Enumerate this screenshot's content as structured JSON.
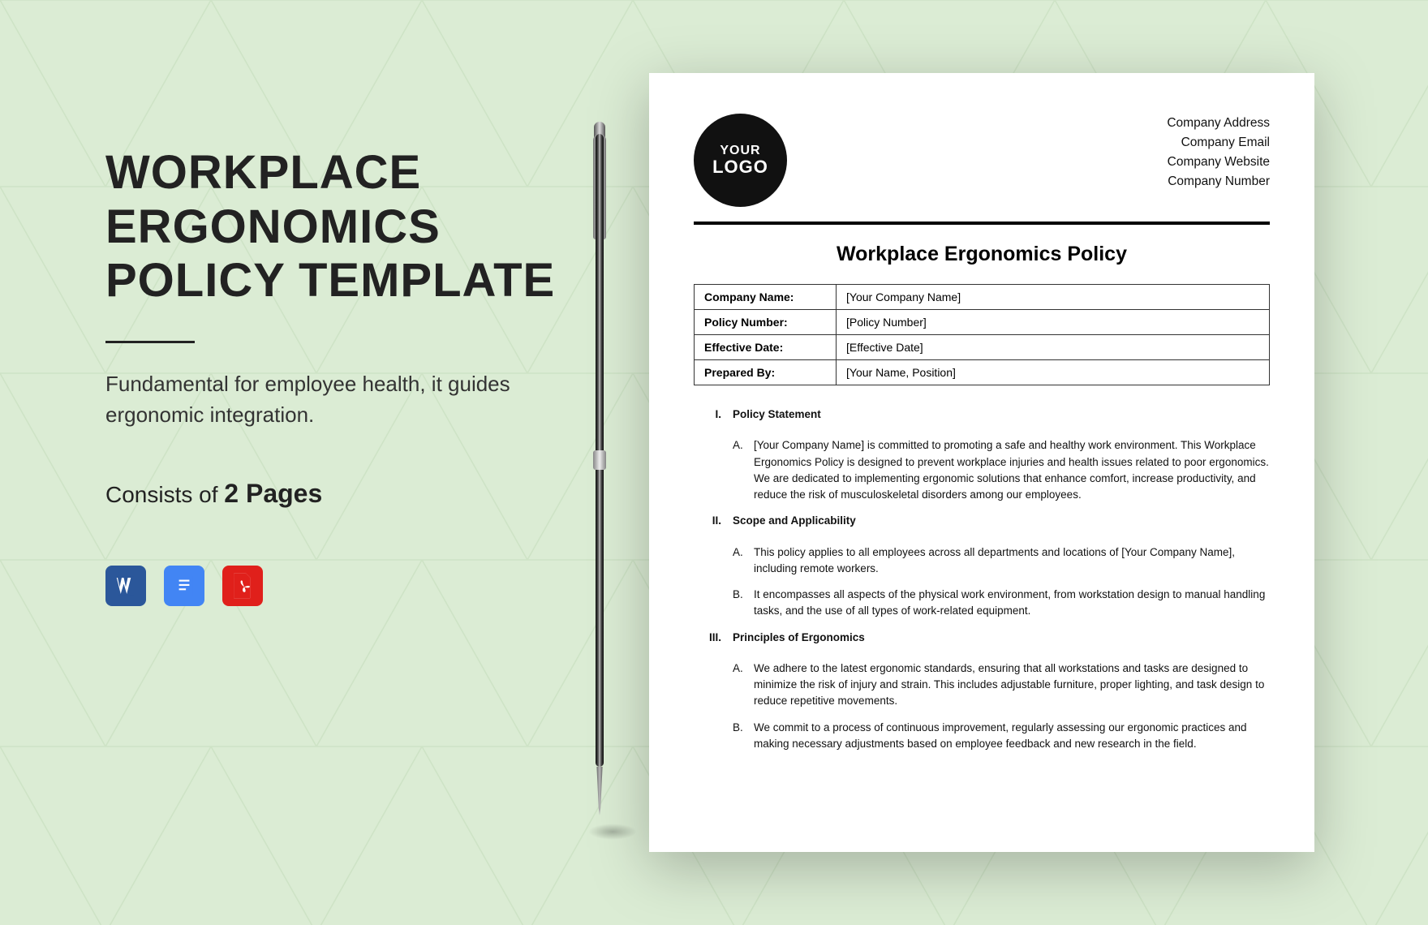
{
  "colors": {
    "bg": "#dbecd4",
    "word": "#2b579a",
    "gdoc": "#4285f4",
    "pdf": "#e0201b"
  },
  "left": {
    "title_l1": "WORKPLACE",
    "title_l2": "ERGONOMICS",
    "title_l3": "POLICY TEMPLATE",
    "subtitle": "Fundamental for employee health, it guides ergonomic integration.",
    "pages_prefix": "Consists of ",
    "pages_bold": "2 Pages"
  },
  "icons": {
    "word": "W",
    "gdoc": "≡",
    "pdf": "PDF"
  },
  "doc": {
    "logo": {
      "l1": "YOUR",
      "l2": "LOGO"
    },
    "company": [
      "Company Address",
      "Company Email",
      "Company Website",
      "Company Number"
    ],
    "title": "Workplace Ergonomics Policy",
    "meta": [
      {
        "label": "Company Name:",
        "value": "[Your Company Name]"
      },
      {
        "label": "Policy Number:",
        "value": "[Policy Number]"
      },
      {
        "label": "Effective Date:",
        "value": "[Effective Date]"
      },
      {
        "label": "Prepared By:",
        "value": "[Your Name, Position]"
      }
    ],
    "sections": [
      {
        "num": "I.",
        "title": "Policy Statement",
        "items": [
          {
            "letter": "A.",
            "text": "[Your Company Name] is committed to promoting a safe and healthy work environment. This Workplace Ergonomics Policy is designed to prevent workplace injuries and health issues related to poor ergonomics. We are dedicated to implementing ergonomic solutions that enhance comfort, increase productivity, and reduce the risk of musculoskeletal disorders among our employees."
          }
        ]
      },
      {
        "num": "II.",
        "title": "Scope and Applicability",
        "items": [
          {
            "letter": "A.",
            "text": "This policy applies to all employees across all departments and locations of [Your Company Name], including remote workers."
          },
          {
            "letter": "B.",
            "text": "It encompasses all aspects of the physical work environment, from workstation design to manual handling tasks, and the use of all types of work-related equipment."
          }
        ]
      },
      {
        "num": "III.",
        "title": "Principles of Ergonomics",
        "items": [
          {
            "letter": "A.",
            "text": "We adhere to the latest ergonomic standards, ensuring that all workstations and tasks are designed to minimize the risk of injury and strain. This includes adjustable furniture, proper lighting, and task design to reduce repetitive movements."
          },
          {
            "letter": "B.",
            "text": "We commit to a process of continuous improvement, regularly assessing our ergonomic practices and making necessary adjustments based on employee feedback and new research in the field."
          }
        ]
      }
    ]
  }
}
